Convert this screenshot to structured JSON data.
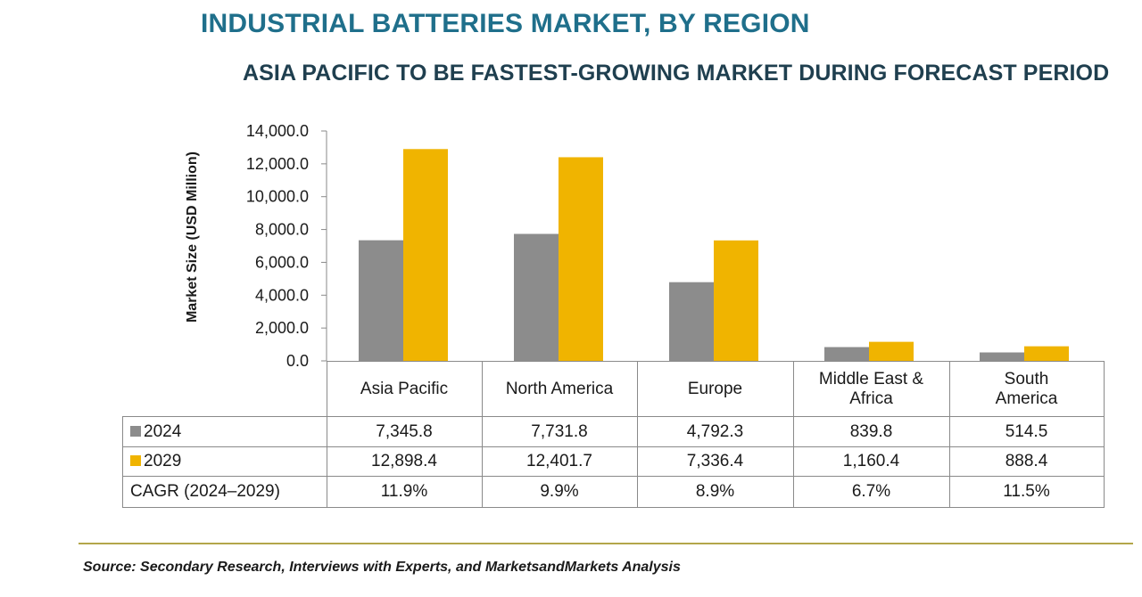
{
  "header": {
    "title": "INDUSTRIAL BATTERIES MARKET, BY REGION",
    "subtitle": "ASIA PACIFIC TO BE FASTEST-GROWING MARKET DURING FORECAST PERIOD"
  },
  "chart_data": {
    "type": "bar",
    "title": "INDUSTRIAL BATTERIES MARKET, BY REGION",
    "subtitle": "ASIA PACIFIC TO BE FASTEST-GROWING MARKET DURING FORECAST PERIOD",
    "ylabel": "Market Size (USD Million)",
    "xlabel": "",
    "ylim": [
      0,
      14000
    ],
    "yticks": [
      "0.0",
      "2,000.0",
      "4,000.0",
      "6,000.0",
      "8,000.0",
      "10,000.0",
      "12,000.0",
      "14,000.0"
    ],
    "categories": [
      "Asia Pacific",
      "North America",
      "Europe",
      "Middle East & Africa",
      "South America"
    ],
    "series": [
      {
        "name": "2024",
        "color": "#8c8c8c",
        "values": [
          7345.8,
          7731.8,
          4792.3,
          839.8,
          514.5
        ],
        "labels": [
          "7,345.8",
          "7,731.8",
          "4,792.3",
          "839.8",
          "514.5"
        ]
      },
      {
        "name": "2029",
        "color": "#f0b400",
        "values": [
          12898.4,
          12401.7,
          7336.4,
          1160.4,
          888.4
        ],
        "labels": [
          "12,898.4",
          "12,401.7",
          "7,336.4",
          "1,160.4",
          "888.4"
        ]
      }
    ],
    "cagr": {
      "label": "CAGR (2024–2029)",
      "values": [
        "11.9%",
        "9.9%",
        "8.9%",
        "6.7%",
        "11.5%"
      ]
    },
    "grid": false,
    "legend": "table-left"
  },
  "table": {
    "categories": [
      [
        "Asia Pacific"
      ],
      [
        "North America"
      ],
      [
        "Europe"
      ],
      [
        "Middle East &",
        "Africa"
      ],
      [
        "South",
        "America"
      ]
    ]
  },
  "source": "Source: Secondary Research, Interviews with Experts, and MarketsandMarkets Analysis"
}
